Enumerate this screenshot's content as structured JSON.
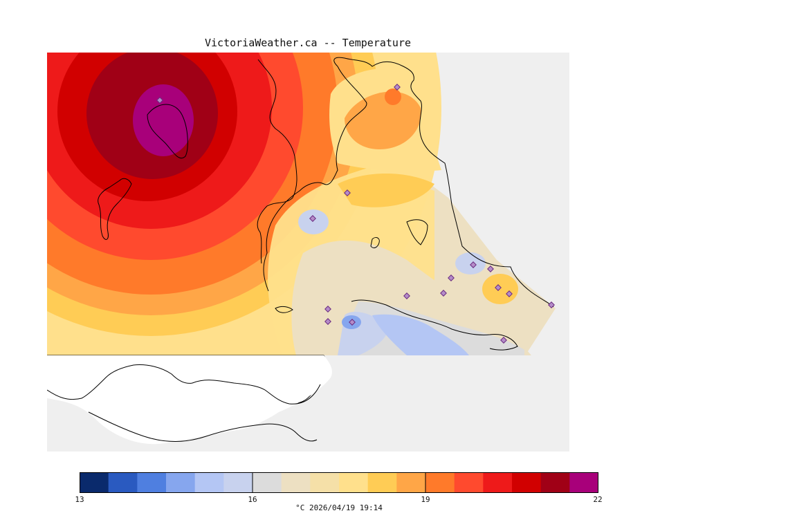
{
  "title": "VictoriaWeather.ca -- Temperature",
  "legend": {
    "min": 13,
    "max": 22,
    "tick_labels": [
      "13",
      "16",
      "19",
      "22"
    ],
    "unit_caption": "°C  2026/04/19 19:14",
    "colors": [
      "#0a2a6c",
      "#2a5ac0",
      "#4f7fe0",
      "#86a6ee",
      "#b4c6f4",
      "#c8d2ee",
      "#dcdcdc",
      "#ede0c2",
      "#f5e0a8",
      "#ffe08c",
      "#ffcc55",
      "#ffa647",
      "#ff7a2a",
      "#ff4a2e",
      "#ee1a1a",
      "#d10000",
      "#a00016",
      "#a8007a"
    ]
  },
  "map": {
    "land_color": "#ffffff",
    "water_color": "#efefef",
    "station_marker": "diamond",
    "station_color": "#b48cc8"
  }
}
